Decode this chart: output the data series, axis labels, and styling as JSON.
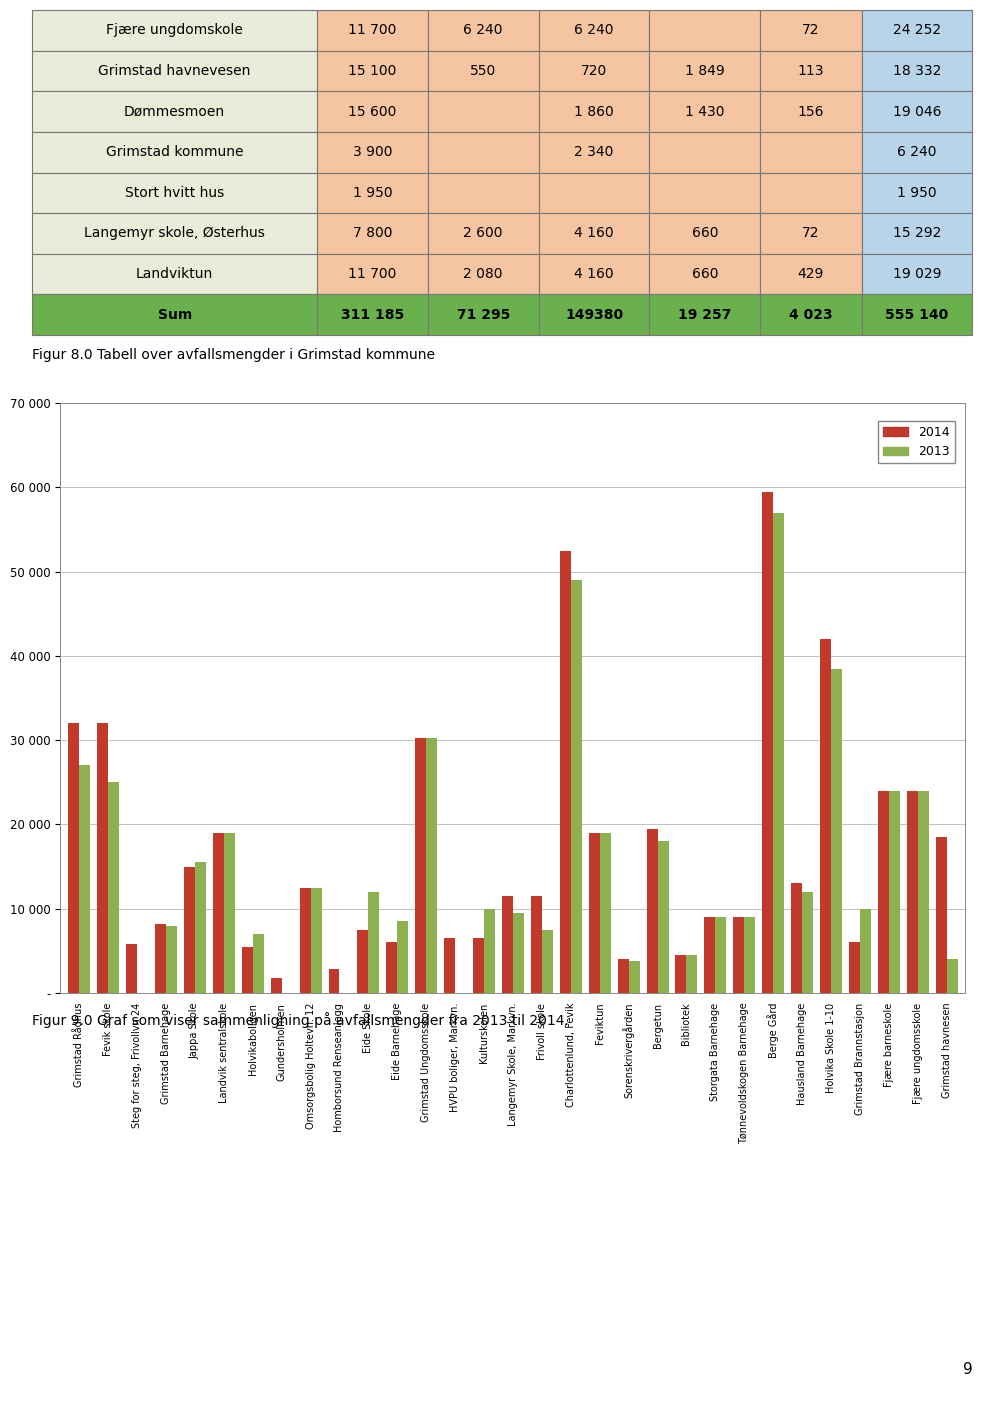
{
  "table": {
    "rows": [
      [
        "Fjære ungdomskole",
        "11 700",
        "6 240",
        "6 240",
        "",
        "72",
        "24 252"
      ],
      [
        "Grimstad havnevesen",
        "15 100",
        "550",
        "720",
        "1 849",
        "113",
        "18 332"
      ],
      [
        "Dømmesmoen",
        "15 600",
        "",
        "1 860",
        "1 430",
        "156",
        "19 046"
      ],
      [
        "Grimstad kommune",
        "3 900",
        "",
        "2 340",
        "",
        "",
        "6 240"
      ],
      [
        "Stort hvitt hus",
        "1 950",
        "",
        "",
        "",
        "",
        "1 950"
      ],
      [
        "Langemyr skole, Østerhus",
        "7 800",
        "2 600",
        "4 160",
        "660",
        "72",
        "15 292"
      ],
      [
        "Landviktun",
        "11 700",
        "2 080",
        "4 160",
        "660",
        "429",
        "19 029"
      ],
      [
        "Sum",
        "311 185",
        "71 295",
        "149380",
        "19 257",
        "4 023",
        "555 140"
      ]
    ],
    "col_bg_colors": [
      "#e8ecd8",
      "#f5c4a0",
      "#f5c4a0",
      "#f5c4a0",
      "#f5c4a0",
      "#f5c4a0",
      "#b8d4e8"
    ],
    "sum_row_bg": "#6ab04c",
    "caption": "Figur 8.0 Tabell over avfallsmengder i Grimstad kommune"
  },
  "chart": {
    "categories": [
      "Grimstad Rådhus",
      "Fevik skole",
      "Steg for steg, Frivollvn 24",
      "Grimstad Barnehage",
      "Jappa Skole",
      "Landvik sentralskole",
      "Holvikaboligen",
      "Gundersholmen",
      "Omsorgsbolig Holtevn. 12",
      "Homborsund Renseanlegg",
      "Eide Skole",
      "Eide Barnehage",
      "Grimstad Ungdomsskole",
      "HVPU boliger, Markvn.",
      "Kulturskolen",
      "Langemyr Skole, Markvn.",
      "Frivoll skole",
      "Charlottenlund, Fevik",
      "Feviktun",
      "Sorenskrivergården",
      "Bergetun",
      "Bibliotek",
      "Storgata Barnehage",
      "Tønnevoldskogen Barnehage",
      "Berge Gård",
      "Hausland Barnehage",
      "Holvika Skole 1-10",
      "Grimstad Brannstasjon",
      "Fjære barneskole",
      "Fjære ungdomsskole",
      "Grimstad havnesen"
    ],
    "values_2014": [
      32000,
      32000,
      5800,
      8200,
      15000,
      19000,
      5500,
      1800,
      12500,
      2800,
      7500,
      6000,
      30200,
      6500,
      6500,
      11500,
      11500,
      52500,
      19000,
      4000,
      19500,
      4500,
      9000,
      9000,
      59500,
      13000,
      42000,
      6000,
      24000,
      24000,
      18500
    ],
    "values_2013": [
      27000,
      25000,
      0,
      8000,
      15500,
      19000,
      7000,
      0,
      12500,
      0,
      12000,
      8500,
      30200,
      0,
      10000,
      9500,
      7500,
      49000,
      19000,
      3800,
      18000,
      4500,
      9000,
      9000,
      57000,
      12000,
      38500,
      10000,
      24000,
      24000,
      4000
    ],
    "color_2014": "#c0392b",
    "color_2013": "#8db050",
    "ylim": [
      0,
      70000
    ],
    "yticks": [
      0,
      10000,
      20000,
      30000,
      40000,
      50000,
      60000,
      70000
    ],
    "ytick_labels": [
      "-",
      "10 000",
      "20 000",
      "30 000",
      "40 000",
      "50 000",
      "60 000",
      "70 000"
    ],
    "legend_labels": [
      "2014",
      "2013"
    ],
    "caption": "Figur 9.0 Graf som viser sammenligning på avfallsmengder fra 2013 til 2014."
  },
  "page_number": "9",
  "background_color": "#ffffff"
}
